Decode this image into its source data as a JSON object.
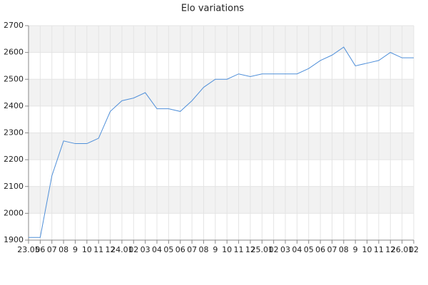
{
  "chart_data": {
    "type": "line",
    "title": "Elo variations",
    "categories": [
      "23.05",
      "06",
      "07",
      "08",
      "9",
      "10",
      "11",
      "12",
      "24.01",
      "02",
      "03",
      "04",
      "05",
      "06",
      "07",
      "08",
      "9",
      "10",
      "11",
      "12",
      "25.01",
      "02",
      "03",
      "04",
      "05",
      "06",
      "07",
      "08",
      "9",
      "10",
      "11",
      "12",
      "26.01",
      "02"
    ],
    "values": [
      1910,
      1910,
      2140,
      2270,
      2260,
      2260,
      2280,
      2380,
      2420,
      2430,
      2450,
      2390,
      2390,
      2380,
      2420,
      2470,
      2500,
      2500,
      2520,
      2510,
      2520,
      2520,
      2520,
      2520,
      2540,
      2570,
      2590,
      2620,
      2550,
      2560,
      2570,
      2600,
      2580,
      2580
    ],
    "color": "#4f8fd9",
    "ylim": [
      1900,
      2700
    ],
    "yticks": [
      1900,
      2000,
      2100,
      2200,
      2300,
      2400,
      2500,
      2600,
      2700
    ],
    "grid": true
  }
}
